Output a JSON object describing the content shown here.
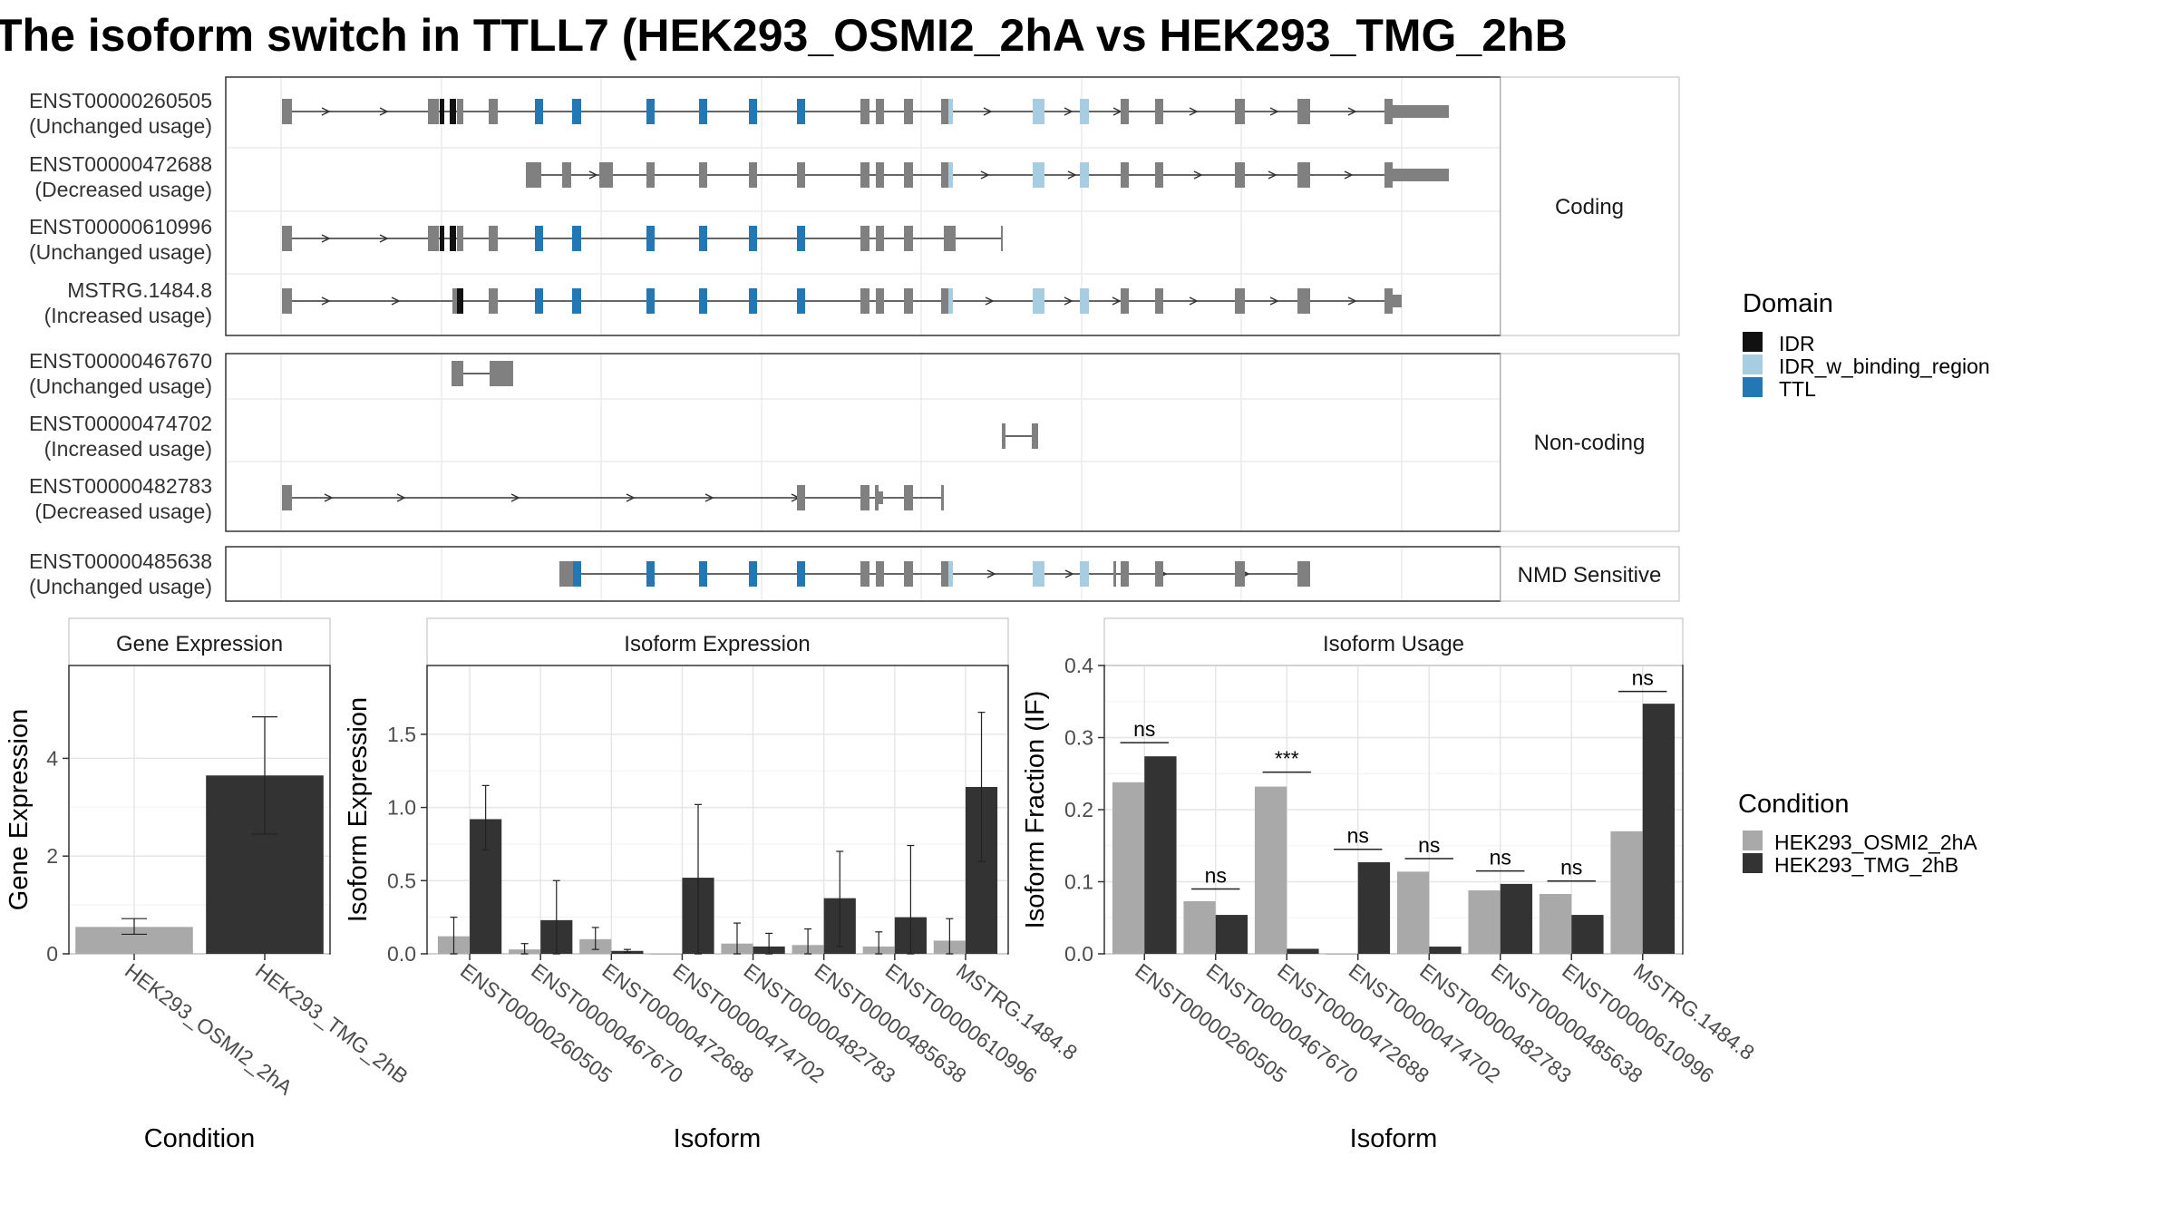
{
  "title": "The isoform switch in TTLL7 (HEK293_OSMI2_2hA vs HEK293_TMG_2hB",
  "colors": {
    "IDR": "#111111",
    "IDR_w_binding_region": "#a6cde2",
    "TTL": "#2377b4",
    "exon": "#808080",
    "cond1": "#a9a9a9",
    "cond2": "#333333"
  },
  "structure": {
    "groups": [
      {
        "label": "Coding",
        "rows": [
          {
            "id": "ENST00000260505",
            "usage": "(Unchanged usage)"
          },
          {
            "id": "ENST00000472688",
            "usage": "(Decreased usage)"
          },
          {
            "id": "ENST00000610996",
            "usage": "(Unchanged usage)"
          },
          {
            "id": "MSTRG.1484.8",
            "usage": "(Increased usage)"
          }
        ]
      },
      {
        "label": "Non-coding",
        "rows": [
          {
            "id": "ENST00000467670",
            "usage": "(Unchanged usage)"
          },
          {
            "id": "ENST00000474702",
            "usage": "(Increased usage)"
          },
          {
            "id": "ENST00000482783",
            "usage": "(Decreased usage)"
          }
        ]
      },
      {
        "label": "NMD Sensitive",
        "rows": [
          {
            "id": "ENST00000485638",
            "usage": "(Unchanged usage)"
          }
        ]
      }
    ]
  },
  "legends": {
    "domain_title": "Domain",
    "domain_items": [
      {
        "label": "IDR",
        "color": "#111111"
      },
      {
        "label": "IDR_w_binding_region",
        "color": "#a6cde2"
      },
      {
        "label": "TTL",
        "color": "#2377b4"
      }
    ],
    "condition_title": "Condition",
    "condition_items": [
      {
        "label": "HEK293_OSMI2_2hA",
        "color": "#a9a9a9"
      },
      {
        "label": "HEK293_TMG_2hB",
        "color": "#333333"
      }
    ]
  },
  "chart_data": [
    {
      "type": "bar",
      "title": "Gene Expression",
      "xlabel": "Condition",
      "ylabel": "Gene Expression",
      "ylim": [
        0,
        5.9
      ],
      "yticks": [
        0,
        2,
        4
      ],
      "categories": [
        "HEK293_OSMI2_2hA",
        "HEK293_TMG_2hB"
      ],
      "values": [
        0.55,
        3.65
      ],
      "errors": [
        [
          0.4,
          0.72
        ],
        [
          2.45,
          4.85
        ]
      ]
    },
    {
      "type": "bar",
      "title": "Isoform Expression",
      "xlabel": "Isoform",
      "ylabel": "Isoform Expression",
      "ylim": [
        0,
        1.97
      ],
      "yticks": [
        "0.0",
        "0.5",
        "1.0",
        "1.5"
      ],
      "categories": [
        "ENST00000260505",
        "ENST00000467670",
        "ENST00000472688",
        "ENST00000474702",
        "ENST00000482783",
        "ENST00000485638",
        "ENST00000610996",
        "MSTRG.1484.8"
      ],
      "series": [
        {
          "name": "HEK293_OSMI2_2hA",
          "values": [
            0.12,
            0.03,
            0.1,
            0.0,
            0.07,
            0.06,
            0.05,
            0.09
          ],
          "errors": [
            [
              0.0,
              0.25
            ],
            [
              0.0,
              0.07
            ],
            [
              0.03,
              0.18
            ],
            [
              0.0,
              0.0
            ],
            [
              0.0,
              0.21
            ],
            [
              0.0,
              0.17
            ],
            [
              0.0,
              0.15
            ],
            [
              0.0,
              0.24
            ]
          ]
        },
        {
          "name": "HEK293_TMG_2hB",
          "values": [
            0.92,
            0.23,
            0.02,
            0.52,
            0.05,
            0.38,
            0.25,
            1.14
          ],
          "errors": [
            [
              0.71,
              1.15
            ],
            [
              0.0,
              0.5
            ],
            [
              0.01,
              0.03
            ],
            [
              0.0,
              1.02
            ],
            [
              0.0,
              0.14
            ],
            [
              0.05,
              0.7
            ],
            [
              0.0,
              0.74
            ],
            [
              0.63,
              1.65
            ]
          ]
        }
      ]
    },
    {
      "type": "bar",
      "title": "Isoform Usage",
      "xlabel": "Isoform",
      "ylabel": "Isoform Fraction (IF)",
      "ylim": [
        0,
        0.4
      ],
      "yticks": [
        "0.0",
        "0.1",
        "0.2",
        "0.3",
        "0.4"
      ],
      "categories": [
        "ENST00000260505",
        "ENST00000467670",
        "ENST00000472688",
        "ENST00000474702",
        "ENST00000482783",
        "ENST00000485638",
        "ENST00000610996",
        "MSTRG.1484.8"
      ],
      "series": [
        {
          "name": "HEK293_OSMI2_2hA",
          "values": [
            0.238,
            0.073,
            0.232,
            0.0,
            0.114,
            0.088,
            0.083,
            0.17
          ]
        },
        {
          "name": "HEK293_TMG_2hB",
          "values": [
            0.274,
            0.054,
            0.007,
            0.127,
            0.01,
            0.097,
            0.054,
            0.347
          ]
        }
      ],
      "annotations": [
        {
          "category": "ENST00000260505",
          "label": "ns",
          "y": 0.293
        },
        {
          "category": "ENST00000467670",
          "label": "ns",
          "y": 0.09
        },
        {
          "category": "ENST00000472688",
          "label": "***",
          "y": 0.252
        },
        {
          "category": "ENST00000474702",
          "label": "ns",
          "y": 0.145
        },
        {
          "category": "ENST00000482783",
          "label": "ns",
          "y": 0.132
        },
        {
          "category": "ENST00000485638",
          "label": "ns",
          "y": 0.115
        },
        {
          "category": "ENST00000610996",
          "label": "ns",
          "y": 0.101
        },
        {
          "category": "MSTRG.1484.8",
          "label": "ns",
          "y": 0.364
        }
      ]
    }
  ]
}
